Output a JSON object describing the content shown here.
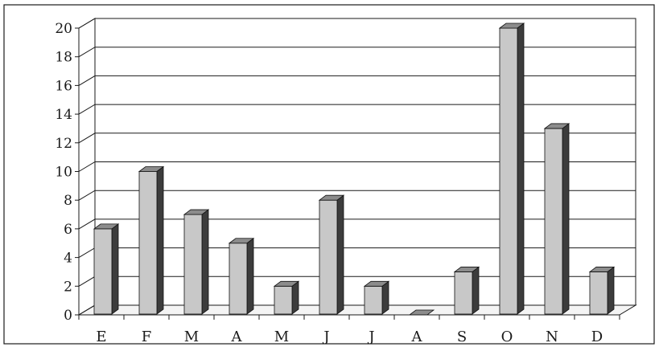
{
  "chart_data": {
    "type": "bar",
    "style": "3d",
    "categories": [
      "E",
      "F",
      "M",
      "A",
      "M",
      "J",
      "J",
      "A",
      "S",
      "O",
      "N",
      "D"
    ],
    "values": [
      6,
      10,
      7,
      5,
      2,
      8,
      2,
      0,
      3,
      20,
      13,
      3
    ],
    "ylim": [
      0,
      20
    ],
    "yticks": [
      0,
      2,
      4,
      6,
      8,
      10,
      12,
      14,
      16,
      18,
      20
    ],
    "ytick_labels": [
      "0",
      "2",
      "4",
      "6",
      "8",
      "10",
      "12",
      "14",
      "16",
      "18",
      "20"
    ],
    "grid": true,
    "legend": "none",
    "title": "",
    "xlabel": "",
    "ylabel": "",
    "colors": {
      "bar_front": "#c8c8c8",
      "bar_top": "#8c8c8c",
      "bar_side": "#3c3c3c",
      "grid": "#1a1a1a",
      "wall": "#ffffff",
      "border": "#1a1a1a"
    }
  }
}
